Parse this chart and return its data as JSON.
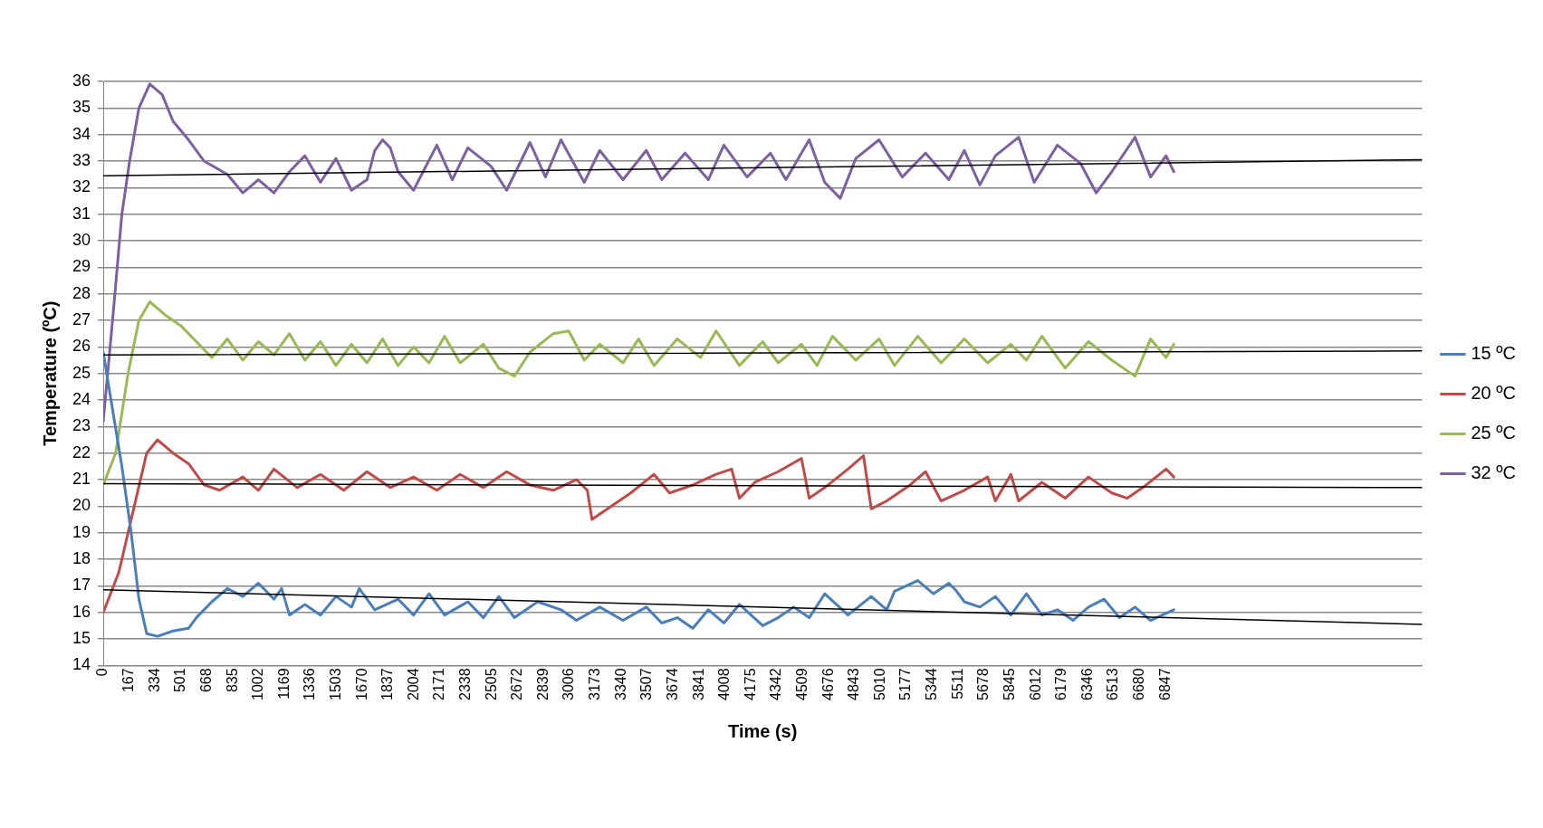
{
  "chart_data": {
    "type": "line",
    "xlabel": "Time (s)",
    "ylabel": "Temperature (ºC)",
    "xlim": [
      0,
      8500
    ],
    "xticks": [
      0,
      167,
      334,
      501,
      668,
      835,
      1002,
      1169,
      1336,
      1503,
      1670,
      1837,
      2004,
      2171,
      2338,
      2505,
      2672,
      2839,
      3006,
      3173,
      3340,
      3507,
      3674,
      3841,
      4008,
      4175,
      4342,
      4509,
      4676,
      4843,
      5010,
      5177,
      5344,
      5511,
      5678,
      5845,
      6012,
      6179,
      6346,
      6513,
      6680,
      6847
    ],
    "ylim": [
      14,
      36
    ],
    "yticks": [
      14,
      15,
      16,
      17,
      18,
      19,
      20,
      21,
      22,
      23,
      24,
      25,
      26,
      27,
      28,
      29,
      30,
      31,
      32,
      33,
      34,
      35,
      36
    ],
    "grid": "y",
    "legend": "right",
    "marker": "none",
    "line_style": "solid",
    "series": [
      {
        "name": "15 ºC",
        "color": "#4a7ebb",
        "x": [
          0,
          50,
          120,
          180,
          230,
          280,
          350,
          450,
          550,
          600,
          700,
          800,
          900,
          1000,
          1100,
          1150,
          1200,
          1300,
          1400,
          1500,
          1600,
          1650,
          1750,
          1900,
          2000,
          2100,
          2200,
          2350,
          2450,
          2550,
          2650,
          2800,
          2950,
          3050,
          3200,
          3350,
          3500,
          3600,
          3700,
          3800,
          3900,
          4000,
          4100,
          4250,
          4350,
          4450,
          4550,
          4650,
          4800,
          4950,
          5050,
          5100,
          5250,
          5350,
          5450,
          5500,
          5550,
          5650,
          5750,
          5850,
          5950,
          6050,
          6150,
          6250,
          6350,
          6450,
          6550,
          6650,
          6750,
          6900
        ],
        "values": [
          25.8,
          24,
          21.5,
          19,
          16.5,
          15.2,
          15.1,
          15.3,
          15.4,
          15.8,
          16.4,
          16.9,
          16.6,
          17.1,
          16.5,
          16.9,
          15.9,
          16.3,
          15.9,
          16.6,
          16.2,
          16.9,
          16.1,
          16.5,
          15.9,
          16.7,
          15.9,
          16.4,
          15.8,
          16.6,
          15.8,
          16.4,
          16.1,
          15.7,
          16.2,
          15.7,
          16.2,
          15.6,
          15.8,
          15.4,
          16.1,
          15.6,
          16.3,
          15.5,
          15.8,
          16.2,
          15.8,
          16.7,
          15.9,
          16.6,
          16.1,
          16.8,
          17.2,
          16.7,
          17.1,
          16.8,
          16.4,
          16.2,
          16.6,
          15.9,
          16.7,
          15.9,
          16.1,
          15.7,
          16.2,
          16.5,
          15.8,
          16.2,
          15.7,
          16.1
        ]
      },
      {
        "name": "20 ºC",
        "color": "#be4b48",
        "x": [
          0,
          100,
          200,
          280,
          350,
          450,
          550,
          650,
          750,
          900,
          1000,
          1100,
          1250,
          1400,
          1550,
          1700,
          1850,
          2000,
          2150,
          2300,
          2450,
          2600,
          2750,
          2900,
          3050,
          3120,
          3150,
          3250,
          3400,
          3550,
          3650,
          3800,
          3950,
          4050,
          4100,
          4200,
          4350,
          4500,
          4550,
          4650,
          4800,
          4900,
          4950,
          5050,
          5200,
          5300,
          5400,
          5550,
          5700,
          5750,
          5850,
          5900,
          6050,
          6200,
          6350,
          6500,
          6600,
          6700,
          6850,
          6900
        ],
        "values": [
          16,
          17.5,
          20,
          22,
          22.5,
          22,
          21.6,
          20.8,
          20.6,
          21.1,
          20.6,
          21.4,
          20.7,
          21.2,
          20.6,
          21.3,
          20.7,
          21.1,
          20.6,
          21.2,
          20.7,
          21.3,
          20.8,
          20.6,
          21,
          20.6,
          19.5,
          19.9,
          20.5,
          21.2,
          20.5,
          20.8,
          21.2,
          21.4,
          20.3,
          20.9,
          21.3,
          21.8,
          20.3,
          20.7,
          21.4,
          21.9,
          19.9,
          20.2,
          20.8,
          21.3,
          20.2,
          20.6,
          21.1,
          20.2,
          21.2,
          20.2,
          20.9,
          20.3,
          21.1,
          20.5,
          20.3,
          20.7,
          21.4,
          21.1
        ]
      },
      {
        "name": "25 ºC",
        "color": "#98b954",
        "x": [
          0,
          80,
          160,
          230,
          300,
          400,
          500,
          600,
          700,
          800,
          900,
          1000,
          1100,
          1200,
          1300,
          1400,
          1500,
          1600,
          1700,
          1800,
          1900,
          2000,
          2100,
          2200,
          2300,
          2450,
          2550,
          2650,
          2750,
          2900,
          3000,
          3100,
          3200,
          3350,
          3450,
          3550,
          3700,
          3850,
          3950,
          4100,
          4250,
          4350,
          4500,
          4600,
          4700,
          4850,
          5000,
          5100,
          5250,
          5400,
          5550,
          5700,
          5850,
          5950,
          6050,
          6200,
          6350,
          6500,
          6650,
          6750,
          6850,
          6900
        ],
        "values": [
          20.8,
          22,
          25,
          27,
          27.7,
          27.2,
          26.8,
          26.2,
          25.6,
          26.3,
          25.5,
          26.2,
          25.7,
          26.5,
          25.5,
          26.2,
          25.3,
          26.1,
          25.4,
          26.3,
          25.3,
          26,
          25.4,
          26.4,
          25.4,
          26.1,
          25.2,
          24.9,
          25.8,
          26.5,
          26.6,
          25.5,
          26.1,
          25.4,
          26.3,
          25.3,
          26.3,
          25.6,
          26.6,
          25.3,
          26.2,
          25.4,
          26.1,
          25.3,
          26.4,
          25.5,
          26.3,
          25.3,
          26.4,
          25.4,
          26.3,
          25.4,
          26.1,
          25.5,
          26.4,
          25.2,
          26.2,
          25.5,
          24.9,
          26.3,
          25.6,
          26.1
        ]
      },
      {
        "name": "32 ºC",
        "color": "#7d60a0",
        "x": [
          0,
          60,
          120,
          170,
          230,
          300,
          380,
          450,
          550,
          650,
          800,
          900,
          1000,
          1100,
          1200,
          1300,
          1400,
          1500,
          1600,
          1700,
          1750,
          1800,
          1850,
          1900,
          2000,
          2150,
          2250,
          2350,
          2500,
          2600,
          2750,
          2850,
          2950,
          3100,
          3200,
          3350,
          3500,
          3600,
          3750,
          3900,
          4000,
          4150,
          4300,
          4400,
          4550,
          4650,
          4750,
          4850,
          5000,
          5150,
          5300,
          5450,
          5550,
          5650,
          5750,
          5900,
          6000,
          6150,
          6300,
          6400,
          6500,
          6650,
          6750,
          6850,
          6900
        ],
        "values": [
          23.2,
          27,
          31,
          33,
          35,
          35.9,
          35.5,
          34.5,
          33.8,
          33,
          32.5,
          31.8,
          32.3,
          31.8,
          32.6,
          33.2,
          32.2,
          33.1,
          31.9,
          32.3,
          33.4,
          33.8,
          33.5,
          32.6,
          31.9,
          33.6,
          32.3,
          33.5,
          32.8,
          31.9,
          33.7,
          32.4,
          33.8,
          32.2,
          33.4,
          32.3,
          33.4,
          32.3,
          33.3,
          32.3,
          33.6,
          32.4,
          33.3,
          32.3,
          33.8,
          32.2,
          31.6,
          33.1,
          33.8,
          32.4,
          33.3,
          32.3,
          33.4,
          32.1,
          33.2,
          33.9,
          32.2,
          33.6,
          32.9,
          31.8,
          32.6,
          33.9,
          32.4,
          33.2,
          32.6
        ]
      },
      {
        "type": "line",
        "color": "#000000",
        "x": [
          0,
          8500
        ],
        "values": [
          16.85,
          15.55
        ]
      },
      {
        "type": "line",
        "color": "#000000",
        "x": [
          0,
          8500
        ],
        "values": [
          20.85,
          20.7
        ]
      },
      {
        "type": "line",
        "color": "#000000",
        "x": [
          0,
          8500
        ],
        "values": [
          25.7,
          25.85
        ]
      },
      {
        "type": "line",
        "color": "#000000",
        "x": [
          0,
          8500
        ],
        "values": [
          32.45,
          33.05
        ]
      }
    ]
  }
}
